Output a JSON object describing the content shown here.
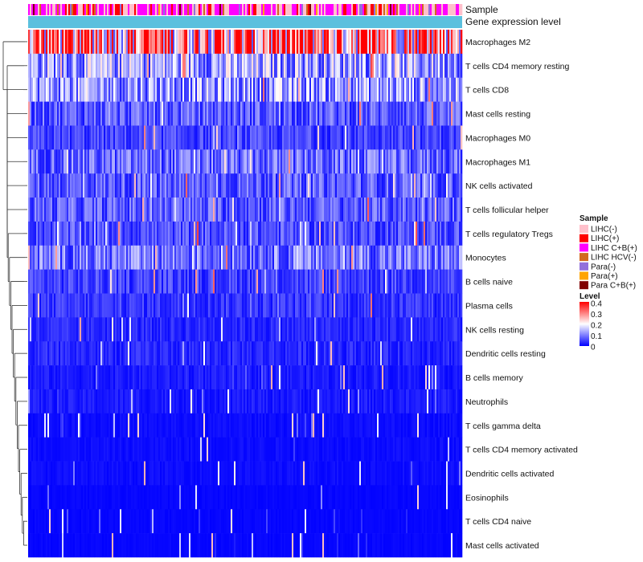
{
  "chart_data": {
    "type": "heatmap",
    "title": "",
    "annotations": [
      {
        "name": "Sample"
      },
      {
        "name": "Gene expression level"
      }
    ],
    "rows": [
      {
        "label": "Macrophages M2",
        "mean": 0.3
      },
      {
        "label": "T cells CD4 memory resting",
        "mean": 0.13
      },
      {
        "label": "T cells CD8",
        "mean": 0.12
      },
      {
        "label": "Mast cells resting",
        "mean": 0.07
      },
      {
        "label": "Macrophages M0",
        "mean": 0.05
      },
      {
        "label": "Macrophages M1",
        "mean": 0.08
      },
      {
        "label": "NK cells activated",
        "mean": 0.07
      },
      {
        "label": "T cells follicular helper",
        "mean": 0.07
      },
      {
        "label": "T cells regulatory  Tregs",
        "mean": 0.06
      },
      {
        "label": "Monocytes",
        "mean": 0.09
      },
      {
        "label": "B cells naive",
        "mean": 0.05
      },
      {
        "label": "Plasma cells",
        "mean": 0.04
      },
      {
        "label": "NK cells resting",
        "mean": 0.03
      },
      {
        "label": "Dendritic cells resting",
        "mean": 0.03
      },
      {
        "label": "B cells memory",
        "mean": 0.02
      },
      {
        "label": "Neutrophils",
        "mean": 0.02
      },
      {
        "label": "T cells gamma delta",
        "mean": 0.01
      },
      {
        "label": "T cells CD4 memory activated",
        "mean": 0.01
      },
      {
        "label": "Dendritic cells activated",
        "mean": 0.01
      },
      {
        "label": "Eosinophils",
        "mean": 0.005
      },
      {
        "label": "T cells CD4 naive",
        "mean": 0.005
      },
      {
        "label": "Mast cells activated",
        "mean": 0.005
      }
    ],
    "legend": {
      "sample": {
        "title": "Sample",
        "items": [
          {
            "label": "LIHC(-)",
            "color": "#ffc0cb"
          },
          {
            "label": "LIHC(+)",
            "color": "#ff0000"
          },
          {
            "label": "LIHC C+B(+)",
            "color": "#ff00ff"
          },
          {
            "label": "LIHC HCV(-)",
            "color": "#d2691e"
          },
          {
            "label": "Para(-)",
            "color": "#9370db"
          },
          {
            "label": "Para(+)",
            "color": "#ffa500"
          },
          {
            "label": "Para C+B(+)",
            "color": "#800000"
          }
        ]
      },
      "level": {
        "title": "Level",
        "ticks": [
          "0.4",
          "0.3",
          "0.2",
          "0.1",
          "0"
        ],
        "range": [
          0,
          0.4
        ]
      }
    },
    "colors": {
      "low": "#0000ff",
      "mid": "#ffffff",
      "high": "#ff0000",
      "gene_expression_bar": "#5bc0de"
    }
  }
}
